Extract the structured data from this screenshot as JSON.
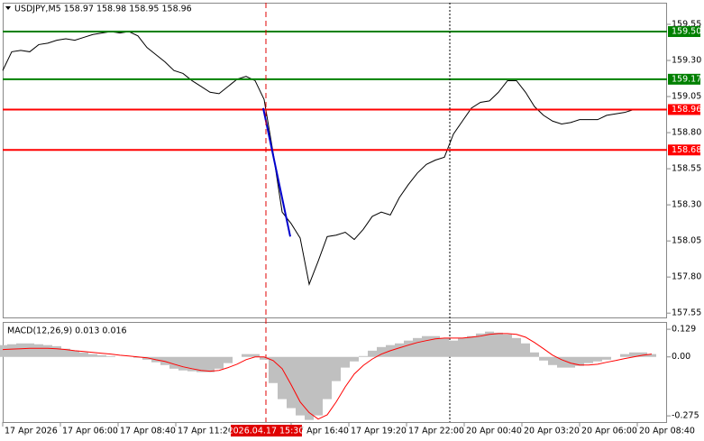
{
  "chart_data": [
    {
      "type": "line",
      "title": "USDJPY,M5  158.97 158.98 158.95 158.96",
      "color": "#000000",
      "values": [
        159.23,
        159.36,
        159.37,
        159.36,
        159.41,
        159.42,
        159.44,
        159.45,
        159.44,
        159.46,
        159.48,
        159.49,
        159.5,
        159.49,
        159.5,
        159.47,
        159.39,
        159.34,
        159.29,
        159.23,
        159.21,
        159.16,
        159.12,
        159.08,
        159.07,
        159.12,
        159.17,
        159.19,
        159.16,
        159.03,
        158.66,
        158.25,
        158.17,
        158.07,
        157.75,
        157.91,
        158.08,
        158.09,
        158.11,
        158.06,
        158.13,
        158.22,
        158.25,
        158.23,
        158.35,
        158.44,
        158.52,
        158.58,
        158.61,
        158.63,
        158.79,
        158.88,
        158.97,
        159.01,
        159.02,
        159.08,
        159.16,
        159.16,
        159.08,
        158.98,
        158.92,
        158.88,
        158.86,
        158.87,
        158.89,
        158.89,
        158.89,
        158.92,
        158.93,
        158.94,
        158.96,
        158.96,
        158.96
      ],
      "ylim": [
        157.52,
        159.7
      ],
      "yticks": [
        159.55,
        {
          "value": 159.3,
          "label": "159.30"
        },
        159.05,
        {
          "value": 158.8,
          "label": "158.80"
        },
        158.55,
        {
          "value": 158.3,
          "label": "158.30"
        },
        158.05,
        {
          "value": 157.8,
          "label": "157.80"
        },
        157.55
      ],
      "hlines": [
        {
          "value": 159.5,
          "label": "159.50",
          "color": "#008000"
        },
        {
          "value": 159.17,
          "label": "159.17",
          "color": "#008000"
        },
        {
          "value": 158.96,
          "label": "158.96",
          "color": "#ff0000"
        },
        {
          "value": 158.68,
          "label": "158.68",
          "color": "#ff0000"
        }
      ],
      "trend_line": {
        "x": [
          28.9,
          31.9
        ],
        "values": [
          158.97,
          158.08
        ],
        "color": "#0000cc"
      },
      "vlines": [
        {
          "x": 29.2,
          "color": "#e00000",
          "style": "dashed"
        },
        {
          "x": 49.6,
          "color": "#000000",
          "style": "dotted"
        }
      ],
      "x_labels": [
        "17 Apr 2026",
        "17 Apr 06:00",
        "17 Apr 08:40",
        "17 Apr 11:20",
        null,
        "17 Apr 16:40",
        "17 Apr 19:20",
        "17 Apr 22:00",
        "20 Apr 00:40",
        "20 Apr 03:20",
        "20 Apr 06:00",
        "20 Apr 08:40"
      ],
      "crosshair_label": "2026.04.17 15:30"
    },
    {
      "type": "macd",
      "title": "MACD(12,26,9) 0.013 0.016",
      "ylim": [
        -0.304,
        0.163
      ],
      "yticks": [
        0.129,
        {
          "value": 0,
          "label": "0.00"
        },
        -0.275
      ],
      "series": [
        {
          "name": "MACD",
          "color": "#c0c0c0",
          "values": [
            0.055,
            0.059,
            0.063,
            0.063,
            0.059,
            0.055,
            0.05,
            0.038,
            0.029,
            0.021,
            0.013,
            0.008,
            0.004,
            0,
            0,
            -0.004,
            -0.013,
            -0.025,
            -0.038,
            -0.055,
            -0.063,
            -0.067,
            -0.071,
            -0.071,
            -0.055,
            -0.029,
            0,
            0.013,
            0.013,
            -0.013,
            -0.122,
            -0.197,
            -0.239,
            -0.273,
            -0.294,
            -0.273,
            -0.197,
            -0.113,
            -0.05,
            -0.021,
            0.004,
            0.029,
            0.046,
            0.055,
            0.063,
            0.076,
            0.088,
            0.097,
            0.097,
            0.088,
            0.076,
            0.088,
            0.097,
            0.109,
            0.118,
            0.113,
            0.105,
            0.088,
            0.063,
            0.021,
            -0.017,
            -0.038,
            -0.05,
            -0.05,
            -0.042,
            -0.029,
            -0.021,
            -0.013,
            0,
            0.013,
            0.021,
            0.021,
            0.013
          ]
        },
        {
          "name": "Signal",
          "color": "#ff0000",
          "values": [
            0.034,
            0.036,
            0.038,
            0.04,
            0.04,
            0.04,
            0.038,
            0.034,
            0.029,
            0.025,
            0.021,
            0.017,
            0.013,
            0.008,
            0.004,
            0,
            -0.004,
            -0.013,
            -0.021,
            -0.034,
            -0.046,
            -0.055,
            -0.063,
            -0.067,
            -0.063,
            -0.05,
            -0.034,
            -0.013,
            0,
            0,
            -0.017,
            -0.055,
            -0.13,
            -0.21,
            -0.26,
            -0.29,
            -0.27,
            -0.21,
            -0.14,
            -0.08,
            -0.04,
            -0.01,
            0.013,
            0.029,
            0.042,
            0.055,
            0.067,
            0.076,
            0.084,
            0.088,
            0.088,
            0.088,
            0.092,
            0.097,
            0.105,
            0.109,
            0.109,
            0.105,
            0.092,
            0.067,
            0.038,
            0.008,
            -0.013,
            -0.029,
            -0.038,
            -0.038,
            -0.034,
            -0.025,
            -0.017,
            -0.008,
            0,
            0.008,
            0.013
          ]
        }
      ]
    }
  ]
}
